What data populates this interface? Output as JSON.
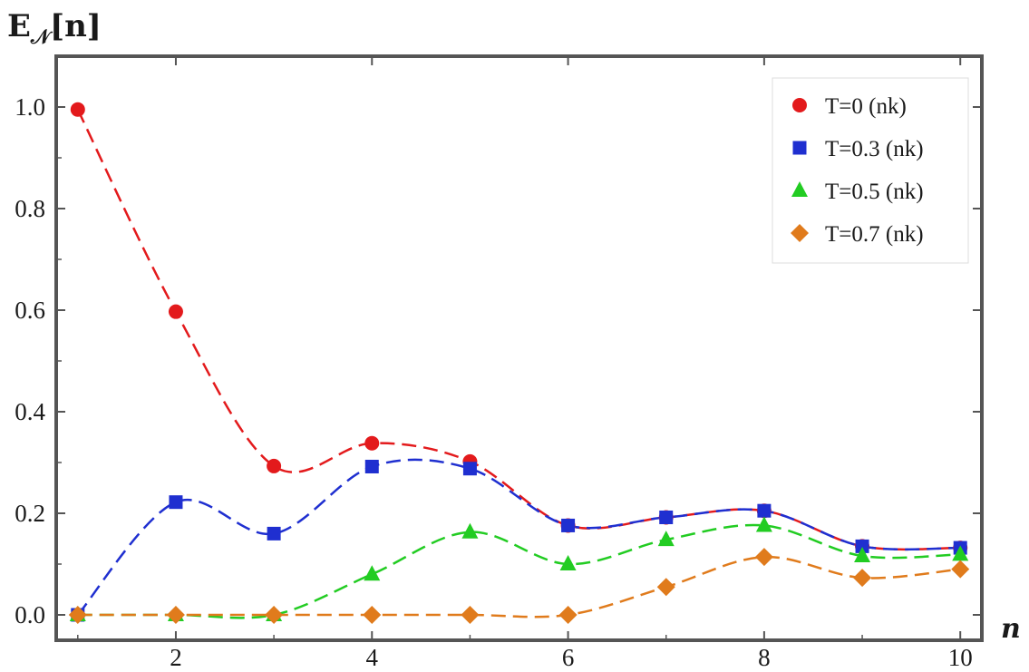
{
  "chart_data": {
    "type": "scatter",
    "ylabel_main": "E",
    "ylabel_sub": "𝒩",
    "ylabel_arg": "[n]",
    "xlabel": "n",
    "x": [
      1,
      2,
      3,
      4,
      5,
      6,
      7,
      8,
      9,
      10
    ],
    "xlim": [
      0.78,
      10.22
    ],
    "ylim": [
      -0.05,
      1.1
    ],
    "x_ticks": [
      2,
      4,
      6,
      8,
      10
    ],
    "x_tick_labels": [
      "2",
      "4",
      "6",
      "8",
      "10"
    ],
    "y_ticks": [
      0.0,
      0.2,
      0.4,
      0.6,
      0.8,
      1.0
    ],
    "y_tick_labels": [
      "0.0",
      "0.2",
      "0.4",
      "0.6",
      "0.8",
      "1.0"
    ],
    "legend_position": "top-right",
    "grid": false,
    "series": [
      {
        "name": "T=0 (nk)",
        "marker": "circle",
        "color": "#e31a1c",
        "values": [
          0.995,
          0.597,
          0.293,
          0.338,
          0.302,
          0.176,
          0.192,
          0.205,
          0.135,
          0.132
        ]
      },
      {
        "name": "T=0.3 (nk)",
        "marker": "square",
        "color": "#1f2fd0",
        "values": [
          0.0,
          0.222,
          0.16,
          0.292,
          0.288,
          0.176,
          0.192,
          0.205,
          0.135,
          0.132
        ]
      },
      {
        "name": "T=0.5 (nk)",
        "marker": "triangle",
        "color": "#22cc22",
        "values": [
          0.0,
          0.0,
          0.0,
          0.08,
          0.163,
          0.1,
          0.148,
          0.176,
          0.116,
          0.119
        ]
      },
      {
        "name": "T=0.7 (nk)",
        "marker": "diamond",
        "color": "#e07b1c",
        "values": [
          0.0,
          0.0,
          0.0,
          0.0,
          0.0,
          0.0,
          0.055,
          0.114,
          0.073,
          0.09
        ]
      }
    ]
  }
}
